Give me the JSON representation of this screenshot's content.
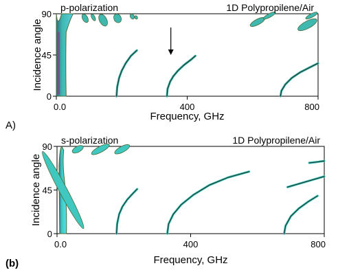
{
  "chart_data": [
    {
      "type": "line",
      "panel_label": "A)",
      "title": "p-polarization",
      "annotation": "1D Polypropilene/Air",
      "xlabel": "Frequency, GHz",
      "ylabel": "Incidence angle",
      "xlim": [
        0,
        800
      ],
      "ylim": [
        0,
        90
      ],
      "x_ticks": [
        "0.0",
        "400",
        "800"
      ],
      "y_ticks": [
        "0",
        "45",
        "90"
      ],
      "grid": false,
      "series": [
        {
          "x": [
            184,
            186,
            192,
            200,
            212,
            228,
            246
          ],
          "y": [
            0,
            10,
            20,
            28,
            36,
            44,
            50
          ]
        },
        {
          "x": [
            338,
            340,
            348,
            358,
            372,
            390,
            412,
            425
          ],
          "y": [
            0,
            8,
            16,
            22,
            28,
            34,
            40,
            44
          ]
        },
        {
          "x": [
            685,
            688,
            700,
            720,
            745,
            772,
            800
          ],
          "y": [
            0,
            6,
            13,
            20,
            26,
            31,
            36
          ]
        }
      ],
      "band_fragments": [
        {
          "x": [
            80,
            96
          ],
          "y": [
            80,
            90
          ]
        },
        {
          "x": [
            108,
            118
          ],
          "y": [
            82,
            90
          ]
        },
        {
          "x": [
            132,
            154
          ],
          "y": [
            76,
            90
          ]
        },
        {
          "x": [
            176,
            198
          ],
          "y": [
            80,
            90
          ]
        },
        {
          "x": [
            226,
            238
          ],
          "y": [
            84,
            90
          ]
        },
        {
          "x": [
            240,
            248
          ],
          "y": [
            84,
            88
          ]
        },
        {
          "x": [
            590,
            640
          ],
          "y": [
            78,
            84
          ]
        },
        {
          "x": [
            630,
            672
          ],
          "y": [
            86,
            92
          ]
        },
        {
          "x": [
            735,
            800
          ],
          "y": [
            74,
            82
          ]
        },
        {
          "x": [
            760,
            800
          ],
          "y": [
            86,
            90
          ]
        }
      ],
      "arrow_at": {
        "x": 350,
        "y_from": 75,
        "y_to": 45
      },
      "colors": {
        "main_band": "#3fb8b0",
        "fill_light": "#5ad0e0",
        "fill_dark": "#2d6f8a",
        "edge": "#4a6a3a",
        "line": "#1f3f33"
      }
    },
    {
      "type": "line",
      "panel_label": "(b)",
      "title": "s-polarization",
      "annotation": "1D Polypropilene/Air",
      "xlabel": "Frequency, GHz",
      "ylabel": "Incidence angle",
      "xlim": [
        0,
        800
      ],
      "ylim": [
        0,
        90
      ],
      "x_ticks": [
        "0.0",
        "400",
        "800"
      ],
      "y_ticks": [
        "0",
        "45",
        "90"
      ],
      "grid": false,
      "series": [
        {
          "x": [
            178,
            180,
            186,
            196,
            210,
            226,
            240
          ],
          "y": [
            0,
            10,
            20,
            28,
            35,
            41,
            46
          ]
        },
        {
          "x": [
            330,
            334,
            348,
            372,
            408,
            456,
            512,
            575
          ],
          "y": [
            0,
            10,
            20,
            30,
            40,
            50,
            58,
            64
          ]
        },
        {
          "x": [
            680,
            684,
            700,
            724,
            752,
            780
          ],
          "y": [
            0,
            8,
            18,
            26,
            33,
            39
          ]
        },
        {
          "x": [
            690,
            720,
            760,
            800
          ],
          "y": [
            48,
            51,
            55,
            59
          ]
        },
        {
          "x": [
            755,
            780,
            800
          ],
          "y": [
            73,
            74,
            75
          ]
        }
      ],
      "band_fragments": [
        {
          "x": [
            6,
            30
          ],
          "y": [
            0,
            90
          ]
        },
        {
          "x": [
            44,
            80
          ],
          "y": [
            84,
            90
          ]
        },
        {
          "x": [
            100,
            160
          ],
          "y": [
            84,
            90
          ]
        },
        {
          "x": [
            170,
            220
          ],
          "y": [
            84,
            90
          ]
        }
      ],
      "colors": {
        "main_band": "#3fc8c0",
        "fill_light": "#4fe6ee",
        "fill_dark": "#2d6f8a",
        "edge": "#4a6a3a",
        "line": "#1f3f33"
      }
    }
  ]
}
